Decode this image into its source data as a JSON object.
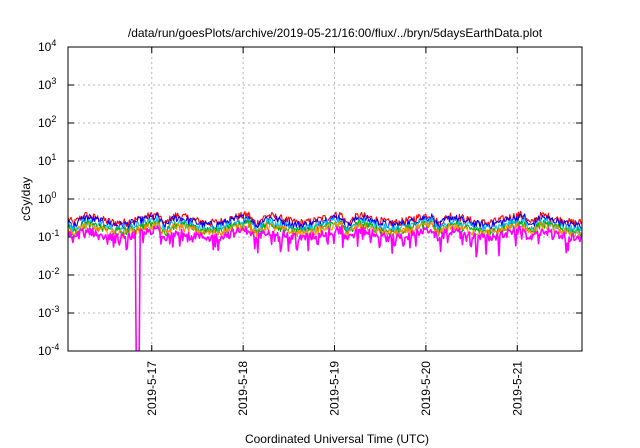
{
  "chart_data": {
    "type": "line",
    "title": "/data/run/goesPlots/archive/2019-05-21/16:00/flux/../bryn/5daysEarthData.plot",
    "xlabel": "Coordinated Universal Time (UTC)",
    "ylabel": "cGy/day",
    "yscale": "log",
    "ylim": [
      0.0001,
      10000
    ],
    "xlim": [
      "2019-05-16 02:00",
      "2019-05-21 17:00"
    ],
    "grid": true,
    "x_ticks": [
      "2019-5-17",
      "2019-5-18",
      "2019-5-19",
      "2019-5-20",
      "2019-5-21"
    ],
    "y_ticks": [
      {
        "value": 0.0001,
        "base": "10",
        "exp": "-4"
      },
      {
        "value": 0.001,
        "base": "10",
        "exp": "-3"
      },
      {
        "value": 0.01,
        "base": "10",
        "exp": "-2"
      },
      {
        "value": 0.1,
        "base": "10",
        "exp": "-1"
      },
      {
        "value": 1,
        "base": "10",
        "exp": "0"
      },
      {
        "value": 10,
        "base": "10",
        "exp": "1"
      },
      {
        "value": 100,
        "base": "10",
        "exp": "2"
      },
      {
        "value": 1000,
        "base": "10",
        "exp": "3"
      },
      {
        "value": 10000,
        "base": "10",
        "exp": "4"
      }
    ],
    "series": [
      {
        "color": "#ff0000",
        "level": 0.32
      },
      {
        "color": "#0000ff",
        "level": 0.28
      },
      {
        "color": "#00c0ff",
        "level": 0.22
      },
      {
        "color": "#00b000",
        "level": 0.19
      },
      {
        "color": "#ff8c00",
        "level": 0.17
      },
      {
        "color": "#ff00ff",
        "level": 0.13
      }
    ],
    "dropout": {
      "series": "#ff00ff",
      "time": "2019-05-16 20:20",
      "value": 0.0001
    }
  }
}
